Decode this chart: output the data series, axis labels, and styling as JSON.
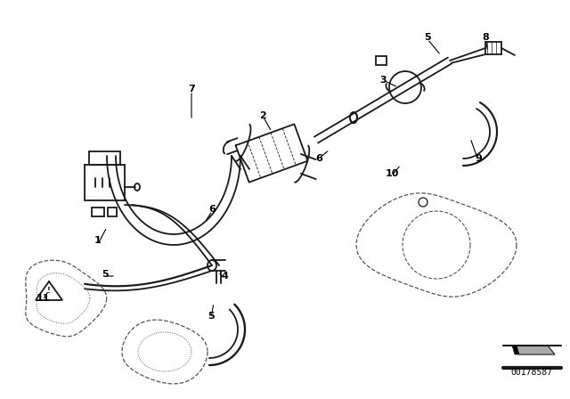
{
  "bg_color": "#ffffff",
  "line_color": "#1a1a1a",
  "dashed_color": "#555555",
  "diagram_id": "00178587",
  "label_positions": [
    [
      "11",
      48,
      335
    ],
    [
      "1",
      110,
      270
    ],
    [
      "7",
      215,
      100
    ],
    [
      "6",
      238,
      235
    ],
    [
      "6",
      358,
      178
    ],
    [
      "2",
      295,
      130
    ],
    [
      "4",
      252,
      310
    ],
    [
      "5",
      118,
      308
    ],
    [
      "5",
      237,
      355
    ],
    [
      "3",
      430,
      90
    ],
    [
      "5",
      480,
      42
    ],
    [
      "8",
      545,
      42
    ],
    [
      "10",
      440,
      195
    ],
    [
      "9",
      537,
      178
    ]
  ]
}
